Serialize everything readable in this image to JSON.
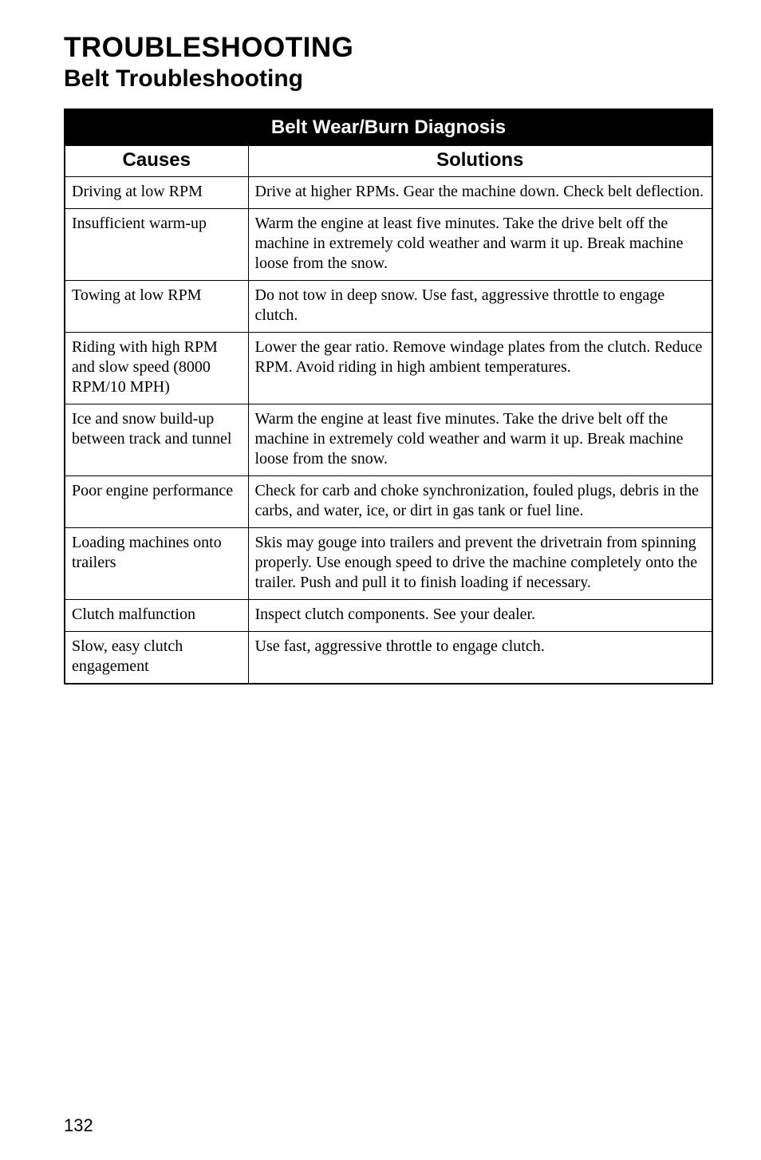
{
  "heading": "TROUBLESHOOTING",
  "subheading": "Belt Troubleshooting",
  "table": {
    "title": "Belt Wear/Burn Diagnosis",
    "columns": [
      "Causes",
      "Solutions"
    ],
    "rows": [
      {
        "cause": "Driving at low RPM",
        "solution": "Drive at higher RPMs. Gear the machine down. Check belt deflection."
      },
      {
        "cause": "Insufficient warm-up",
        "solution": "Warm the engine at least five minutes. Take the drive belt off the machine in extremely cold weather and warm it up. Break machine loose from the snow."
      },
      {
        "cause": "Towing at low RPM",
        "solution": "Do not tow in deep snow. Use fast, aggressive throttle to engage clutch."
      },
      {
        "cause": "Riding with high RPM and slow speed (8000 RPM/10 MPH)",
        "solution": "Lower the gear ratio.  Remove windage plates from the clutch.  Reduce RPM.  Avoid riding in high ambient temperatures."
      },
      {
        "cause": "Ice and snow build-up between track and tunnel",
        "solution": "Warm the engine at least five minutes. Take the drive belt off the machine in extremely cold weather and warm it up. Break machine loose from the snow."
      },
      {
        "cause": "Poor engine performance",
        "solution": "Check for carb and choke synchronization, fouled plugs, debris in the carbs, and water, ice, or dirt in gas tank or fuel line."
      },
      {
        "cause": "Loading machines onto trailers",
        "solution": "Skis may gouge into trailers and prevent the drivetrain from spinning properly.  Use enough speed to drive the machine completely onto the trailer.  Push and pull it to finish loading if necessary."
      },
      {
        "cause": "Clutch malfunction",
        "solution": "Inspect clutch components.  See your dealer."
      },
      {
        "cause": "Slow, easy clutch engagement",
        "solution": "Use fast, aggressive throttle to engage clutch."
      }
    ]
  },
  "page_number": "132"
}
